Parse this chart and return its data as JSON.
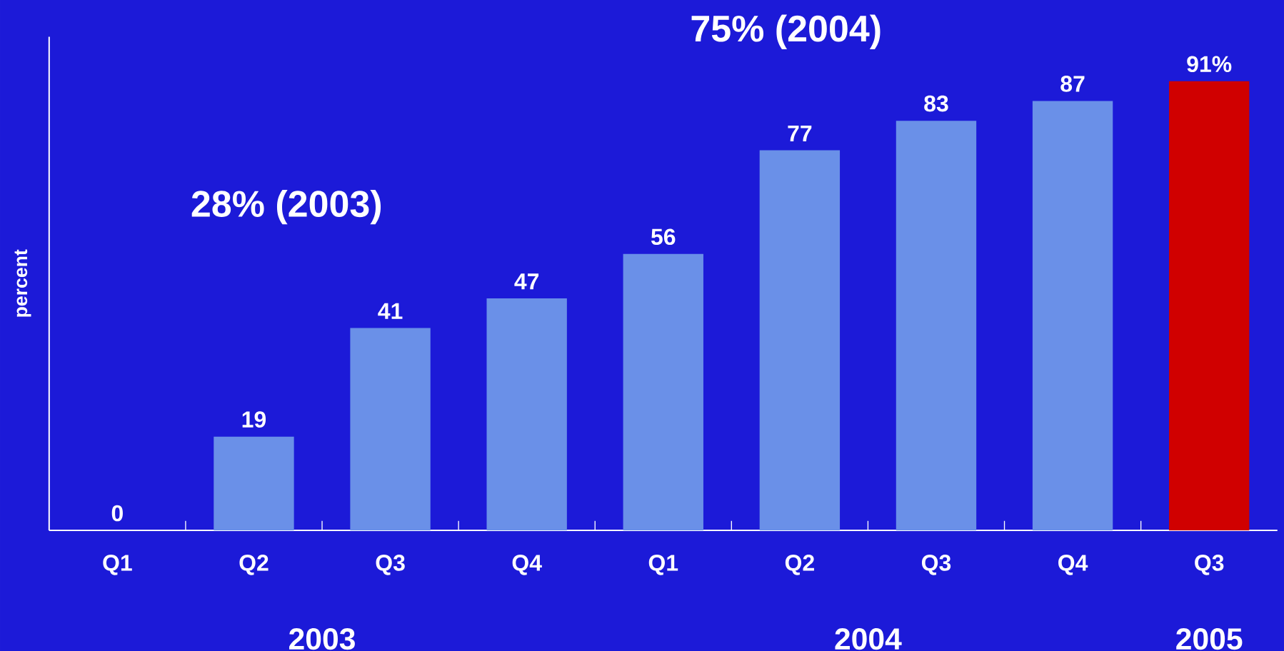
{
  "chart_data": {
    "type": "bar",
    "ylabel": "percent",
    "categories": [
      "Q1",
      "Q2",
      "Q3",
      "Q4",
      "Q1",
      "Q2",
      "Q3",
      "Q4",
      "Q3"
    ],
    "values": [
      0,
      19,
      41,
      47,
      56,
      77,
      83,
      87,
      91
    ],
    "colors": [
      "#6a90e8",
      "#6a90e8",
      "#6a90e8",
      "#6a90e8",
      "#6a90e8",
      "#6a90e8",
      "#6a90e8",
      "#6a90e8",
      "#d00000"
    ],
    "value_labels": [
      "0",
      "19",
      "41",
      "47",
      "56",
      "77",
      "83",
      "87",
      "91%"
    ],
    "ylim": [
      0,
      100
    ],
    "tick_labels": "x",
    "annotations": [
      "28% (2003)",
      "75% (2004)",
      "2003",
      "2004",
      "2005"
    ]
  }
}
